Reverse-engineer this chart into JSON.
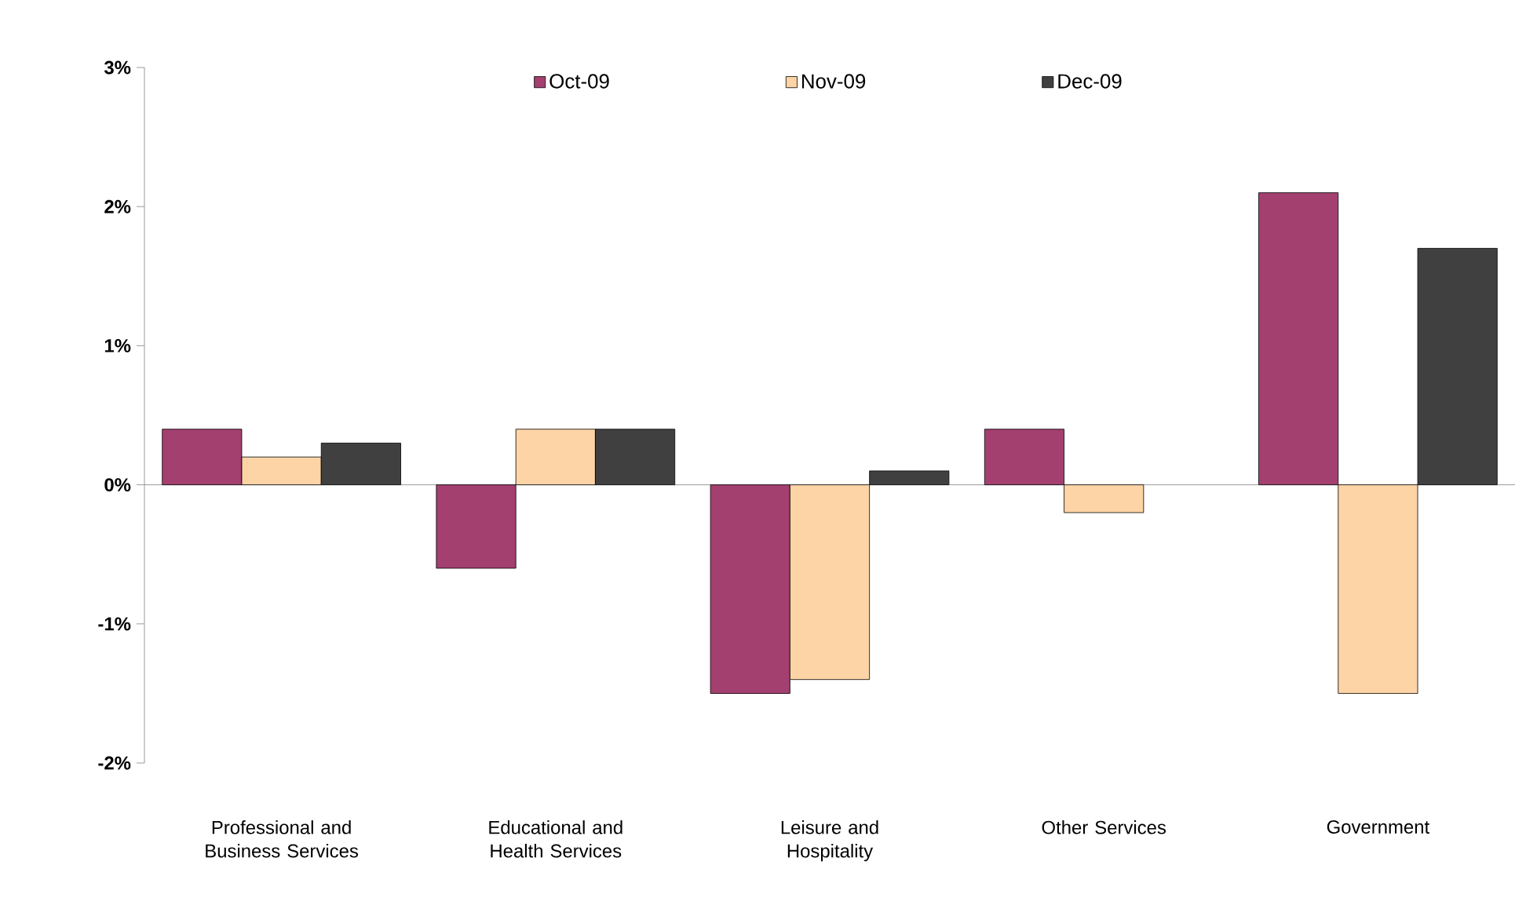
{
  "chart_data": {
    "type": "bar",
    "categories": [
      "Professional and Business Services",
      "Educational and Health Services",
      "Leisure and Hospitality",
      "Other Services",
      "Government"
    ],
    "series": [
      {
        "name": "Oct-09",
        "color": "#a3406f",
        "values": [
          0.4,
          -0.6,
          -1.5,
          0.4,
          2.1
        ]
      },
      {
        "name": "Nov-09",
        "color": "#fdd4a6",
        "values": [
          0.2,
          0.4,
          -1.4,
          -0.2,
          -1.5
        ]
      },
      {
        "name": "Dec-09",
        "color": "#404040",
        "values": [
          0.3,
          0.4,
          0.1,
          null,
          1.7
        ]
      }
    ],
    "ylim": [
      -2,
      3
    ],
    "yticks": [
      {
        "value": -2,
        "label": "-2%"
      },
      {
        "value": -1,
        "label": "-1%"
      },
      {
        "value": 0,
        "label": "0%"
      },
      {
        "value": 1,
        "label": "1%"
      },
      {
        "value": 2,
        "label": "2%"
      },
      {
        "value": 3,
        "label": "3%"
      }
    ],
    "legend": "top"
  }
}
